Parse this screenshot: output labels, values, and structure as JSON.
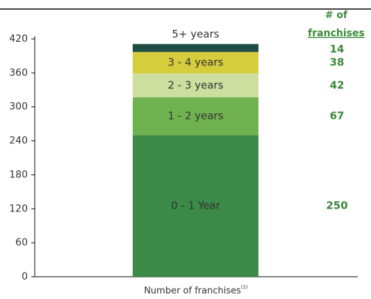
{
  "chart_data": {
    "type": "stacked_bar",
    "categories": [
      "Number of franchises"
    ],
    "category_footnote": "(1)",
    "value_column_header": [
      "# of",
      "franchises"
    ],
    "series": [
      {
        "name": "0 - 1  Year",
        "color": "#3b8a47",
        "values": [
          250
        ]
      },
      {
        "name": "1 - 2 years",
        "color": "#6fb24f",
        "values": [
          67
        ]
      },
      {
        "name": "2 - 3 years",
        "color": "#cddf9f",
        "values": [
          42
        ]
      },
      {
        "name": "3 - 4 years",
        "color": "#d6cd3d",
        "values": [
          38
        ]
      },
      {
        "name": "5+ years",
        "color": "#1f4d44",
        "values": [
          14
        ]
      }
    ],
    "ylim": [
      0,
      420
    ],
    "yticks": [
      0,
      60,
      120,
      180,
      240,
      300,
      360,
      420
    ],
    "value_label_color": "#3a8a3a"
  }
}
